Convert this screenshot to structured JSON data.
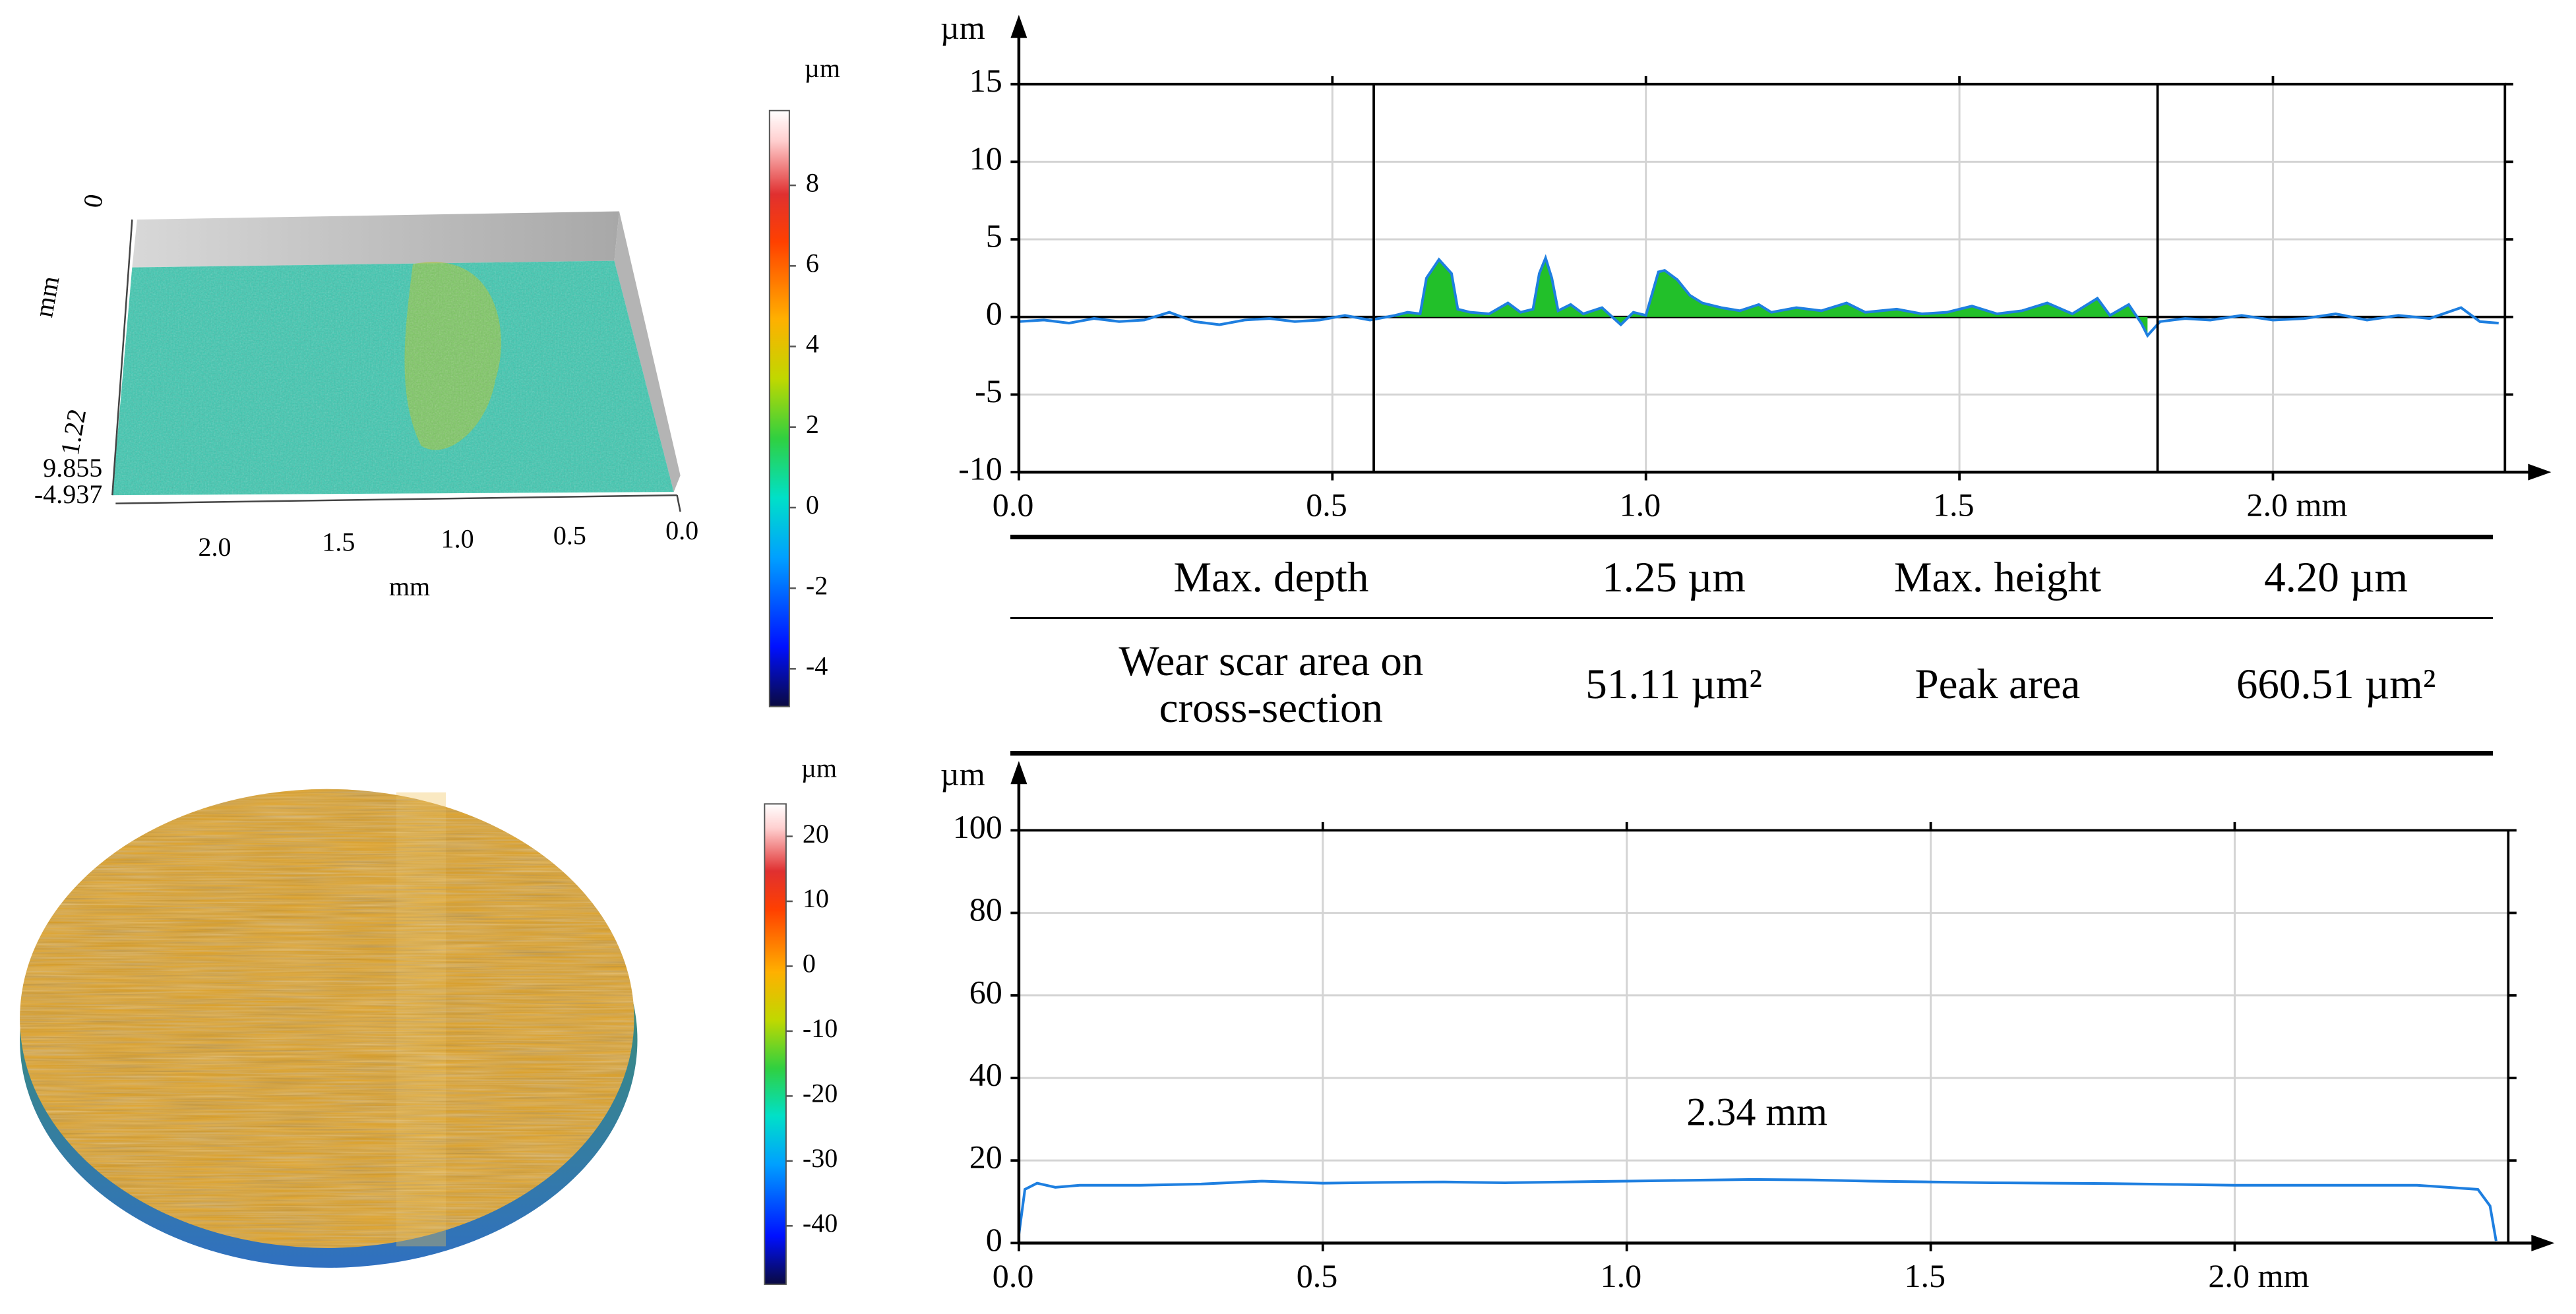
{
  "chart_data": [
    {
      "type": "line",
      "y_label": "µm",
      "xlim": [
        0,
        2.37
      ],
      "ylim": [
        -10,
        15
      ],
      "xticks": [
        {
          "value": 0,
          "label": "0.0"
        },
        0.5,
        {
          "value": 1,
          "label": "1.0"
        },
        1.5,
        {
          "value": 2,
          "label": "2.0 mm"
        }
      ],
      "yticks": [
        15,
        10,
        5,
        0,
        -5,
        -10
      ],
      "grid": true,
      "zero_line": true,
      "markers": [
        0.566,
        1.816
      ],
      "fill_color": "#22c02a",
      "x": [
        0,
        0.04,
        0.08,
        0.12,
        0.16,
        0.2,
        0.24,
        0.28,
        0.32,
        0.36,
        0.4,
        0.44,
        0.48,
        0.52,
        0.56,
        0.6,
        0.62,
        0.64,
        0.65,
        0.67,
        0.69,
        0.7,
        0.72,
        0.75,
        0.78,
        0.8,
        0.82,
        0.83,
        0.84,
        0.85,
        0.86,
        0.88,
        0.9,
        0.93,
        0.96,
        0.98,
        1.0,
        1.02,
        1.03,
        1.05,
        1.07,
        1.09,
        1.12,
        1.15,
        1.18,
        1.2,
        1.24,
        1.28,
        1.32,
        1.35,
        1.4,
        1.44,
        1.48,
        1.52,
        1.56,
        1.6,
        1.64,
        1.68,
        1.72,
        1.74,
        1.77,
        1.79,
        1.8,
        1.82,
        1.86,
        1.9,
        1.95,
        2.0,
        2.05,
        2.1,
        2.15,
        2.2,
        2.25,
        2.3,
        2.33,
        2.36
      ],
      "series": [
        {
          "color": "#1e7fe0",
          "values": [
            -0.3,
            -0.2,
            -0.4,
            -0.1,
            -0.3,
            -0.2,
            0.3,
            -0.3,
            -0.5,
            -0.2,
            -0.1,
            -0.3,
            -0.2,
            0.1,
            -0.2,
            0.1,
            0.3,
            0.2,
            2.5,
            3.7,
            2.8,
            0.5,
            0.3,
            0.2,
            0.9,
            0.3,
            0.5,
            2.8,
            3.8,
            2.5,
            0.4,
            0.8,
            0.2,
            0.6,
            -0.5,
            0.3,
            0.1,
            2.9,
            3.0,
            2.4,
            1.4,
            0.9,
            0.6,
            0.4,
            0.8,
            0.3,
            0.6,
            0.4,
            0.9,
            0.3,
            0.5,
            0.2,
            0.3,
            0.7,
            0.2,
            0.4,
            0.9,
            0.2,
            1.2,
            0.1,
            0.8,
            -0.4,
            -1.2,
            -0.3,
            -0.1,
            -0.2,
            0.1,
            -0.2,
            -0.1,
            0.2,
            -0.2,
            0.1,
            -0.1,
            0.6,
            -0.3,
            -0.4
          ]
        }
      ]
    },
    {
      "type": "line",
      "y_label": "µm",
      "annotation": "2.34 mm",
      "xlim": [
        0,
        2.45
      ],
      "ylim": [
        0,
        100
      ],
      "xticks": [
        {
          "value": 0,
          "label": "0.0"
        },
        0.5,
        {
          "value": 1,
          "label": "1.0"
        },
        1.5,
        {
          "value": 2,
          "label": "2.0 mm"
        }
      ],
      "yticks": [
        100,
        80,
        60,
        40,
        20,
        0
      ],
      "grid": true,
      "x": [
        0,
        0.01,
        0.03,
        0.06,
        0.1,
        0.2,
        0.3,
        0.4,
        0.5,
        0.6,
        0.7,
        0.8,
        0.9,
        1.0,
        1.1,
        1.2,
        1.3,
        1.4,
        1.5,
        1.6,
        1.7,
        1.8,
        1.9,
        2.0,
        2.1,
        2.2,
        2.3,
        2.4,
        2.42,
        2.43
      ],
      "series": [
        {
          "color": "#1e7fe0",
          "values": [
            2,
            13,
            14.5,
            13.5,
            14,
            14,
            14.3,
            15,
            14.5,
            14.7,
            14.8,
            14.6,
            14.8,
            15,
            15.2,
            15.4,
            15.3,
            15,
            14.8,
            14.6,
            14.5,
            14.4,
            14.2,
            14,
            14,
            14,
            14,
            13,
            9,
            0.5
          ]
        }
      ]
    },
    {
      "type": "colorbar",
      "unit": "µm",
      "ylim": [
        -4.937,
        9.855
      ],
      "yticks": [
        8,
        6,
        4,
        2,
        0,
        -2,
        -4
      ]
    },
    {
      "type": "colorbar",
      "unit": "µm",
      "ylim": [
        -49,
        25
      ],
      "yticks": [
        20,
        10,
        0,
        -10,
        -20,
        -30,
        -40
      ]
    }
  ],
  "surface_top": {
    "z_label_top": "0",
    "y_label": "mm",
    "z_label_mid": "1.22",
    "z_max": "9.855",
    "z_min": "-4.937",
    "x_ticks": [
      "2.0",
      "1.5",
      "1.0",
      "0.5",
      "0.0"
    ],
    "x_label": "mm"
  },
  "table": {
    "rows": [
      [
        "Max. depth",
        "1.25 µm",
        "Max. height",
        "4.20 µm"
      ],
      [
        "Wear scar area on cross-section",
        "51.11 µm²",
        "Peak area",
        "660.51 µm²"
      ]
    ]
  }
}
